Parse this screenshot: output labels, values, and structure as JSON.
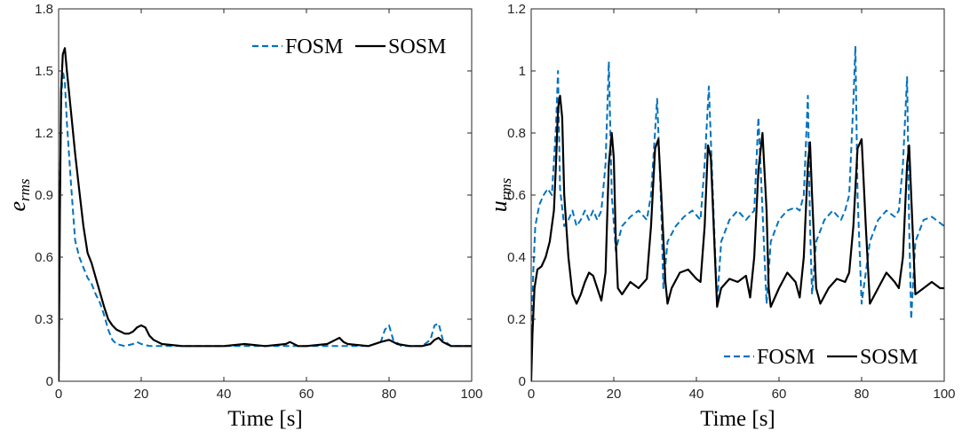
{
  "colors": {
    "fosm": "#0072BD",
    "sosm": "#000000",
    "axis": "#262626",
    "background": "#ffffff"
  },
  "chart_data": [
    {
      "type": "line",
      "xlabel": "Time [s]",
      "ylabel": {
        "main": "e",
        "sub": "rms"
      },
      "xlim": [
        0,
        100
      ],
      "ylim": [
        0,
        1.8
      ],
      "xticks": [
        "0",
        "20",
        "40",
        "60",
        "80",
        "100"
      ],
      "yticks": [
        "0",
        "0.3",
        "0.6",
        "0.9",
        "1.2",
        "1.5",
        "1.8"
      ],
      "grid": false,
      "legend": {
        "position": "top-right",
        "entries": [
          "FOSM",
          "SOSM"
        ]
      },
      "series": [
        {
          "name": "FOSM",
          "style": "dashed",
          "x": [
            0,
            0.3,
            0.6,
            1,
            1.5,
            2,
            3,
            4,
            5,
            6,
            7,
            8,
            9,
            10,
            11,
            12,
            13,
            14,
            16,
            18,
            19,
            20,
            22,
            25,
            30,
            40,
            50,
            55,
            60,
            65,
            70,
            75,
            78,
            79,
            80,
            81,
            83,
            85,
            88,
            90,
            91,
            92,
            93,
            95,
            100
          ],
          "y": [
            0,
            0.9,
            1.35,
            1.5,
            1.45,
            1.25,
            0.95,
            0.68,
            0.6,
            0.55,
            0.5,
            0.47,
            0.42,
            0.38,
            0.32,
            0.25,
            0.2,
            0.18,
            0.17,
            0.18,
            0.19,
            0.18,
            0.17,
            0.17,
            0.17,
            0.17,
            0.17,
            0.17,
            0.17,
            0.17,
            0.17,
            0.17,
            0.19,
            0.25,
            0.27,
            0.2,
            0.17,
            0.17,
            0.17,
            0.2,
            0.27,
            0.28,
            0.2,
            0.17,
            0.17
          ]
        },
        {
          "name": "SOSM",
          "style": "solid",
          "x": [
            0,
            0.3,
            0.6,
            1,
            1.5,
            2,
            3,
            4,
            5,
            6,
            7,
            8,
            9,
            10,
            11,
            12,
            13,
            14,
            15,
            16,
            17,
            18,
            19,
            20,
            21,
            22,
            23,
            25,
            30,
            35,
            40,
            45,
            50,
            55,
            56,
            58,
            60,
            65,
            67,
            68,
            69,
            70,
            75,
            78,
            80,
            82,
            85,
            88,
            90,
            91,
            92,
            93,
            94,
            95,
            100
          ],
          "y": [
            0,
            0.8,
            1.4,
            1.58,
            1.61,
            1.5,
            1.3,
            1.1,
            0.92,
            0.75,
            0.62,
            0.57,
            0.5,
            0.43,
            0.36,
            0.3,
            0.27,
            0.25,
            0.24,
            0.23,
            0.23,
            0.24,
            0.26,
            0.27,
            0.26,
            0.22,
            0.2,
            0.18,
            0.17,
            0.17,
            0.17,
            0.18,
            0.17,
            0.18,
            0.19,
            0.17,
            0.17,
            0.18,
            0.2,
            0.21,
            0.19,
            0.18,
            0.17,
            0.19,
            0.2,
            0.18,
            0.17,
            0.17,
            0.18,
            0.2,
            0.21,
            0.19,
            0.18,
            0.17,
            0.17
          ]
        }
      ]
    },
    {
      "type": "line",
      "xlabel": "Time [s]",
      "ylabel": {
        "main": "u",
        "sub": "rms"
      },
      "xlim": [
        0,
        100
      ],
      "ylim": [
        0,
        1.2
      ],
      "xticks": [
        "0",
        "20",
        "40",
        "60",
        "80",
        "100"
      ],
      "yticks": [
        "0",
        "0.2",
        "0.4",
        "0.6",
        "0.8",
        "1",
        "1.2"
      ],
      "grid": false,
      "legend": {
        "position": "bottom-right",
        "entries": [
          "FOSM",
          "SOSM"
        ]
      },
      "series": [
        {
          "name": "FOSM",
          "style": "dashed",
          "x": [
            0,
            0.5,
            1,
            2,
            3,
            4,
            5,
            6,
            6.5,
            7,
            8,
            9,
            10,
            11,
            12,
            13,
            14,
            15,
            16,
            17,
            18,
            18.8,
            19.5,
            20.5,
            21,
            22,
            24,
            26,
            28,
            29,
            30.5,
            31.5,
            32,
            33,
            35,
            37,
            39,
            41,
            42,
            43,
            44,
            45,
            46,
            48,
            50,
            52,
            54,
            55,
            56,
            57,
            58,
            60,
            62,
            64,
            65,
            66,
            67,
            67.5,
            68,
            69,
            71,
            73,
            75,
            76,
            77,
            78,
            78.5,
            79,
            80,
            82,
            84,
            86,
            88,
            89,
            90,
            91,
            91.5,
            92,
            93,
            95,
            97,
            99,
            100
          ],
          "y": [
            0.1,
            0.35,
            0.5,
            0.57,
            0.6,
            0.62,
            0.6,
            0.82,
            1.0,
            0.62,
            0.5,
            0.52,
            0.55,
            0.5,
            0.52,
            0.55,
            0.52,
            0.55,
            0.52,
            0.55,
            0.7,
            1.03,
            0.6,
            0.42,
            0.45,
            0.5,
            0.53,
            0.55,
            0.52,
            0.6,
            0.91,
            0.55,
            0.3,
            0.45,
            0.5,
            0.53,
            0.55,
            0.52,
            0.7,
            0.95,
            0.6,
            0.25,
            0.45,
            0.52,
            0.55,
            0.52,
            0.55,
            0.85,
            0.55,
            0.25,
            0.45,
            0.52,
            0.55,
            0.56,
            0.55,
            0.6,
            0.92,
            0.5,
            0.28,
            0.45,
            0.52,
            0.55,
            0.52,
            0.55,
            0.6,
            0.9,
            1.08,
            0.6,
            0.25,
            0.45,
            0.52,
            0.55,
            0.53,
            0.55,
            0.7,
            0.98,
            0.5,
            0.2,
            0.45,
            0.52,
            0.53,
            0.51,
            0.5
          ]
        },
        {
          "name": "SOSM",
          "style": "solid",
          "x": [
            0,
            0.3,
            0.8,
            1.5,
            2.5,
            3.5,
            4.5,
            5.5,
            6,
            6.5,
            7,
            7.5,
            8,
            9,
            10,
            11,
            12,
            13,
            14,
            15,
            16,
            17,
            18,
            18.8,
            19.5,
            20,
            20.5,
            21,
            22,
            24,
            26,
            28,
            29,
            30,
            30.8,
            31.5,
            32.5,
            33,
            34,
            36,
            38,
            40,
            41,
            42,
            42.8,
            43.5,
            44.5,
            45,
            46,
            48,
            50,
            52,
            53,
            54,
            55,
            56,
            57,
            57.5,
            58,
            60,
            62,
            64,
            65,
            66,
            67,
            67.5,
            68,
            69,
            70,
            72,
            74,
            76,
            77,
            78,
            79,
            80,
            81,
            82,
            84,
            86,
            88,
            89,
            90,
            91,
            91.5,
            92,
            93,
            95,
            97,
            99,
            100
          ],
          "y": [
            0,
            0.15,
            0.3,
            0.36,
            0.37,
            0.4,
            0.45,
            0.55,
            0.7,
            0.88,
            0.92,
            0.85,
            0.6,
            0.4,
            0.28,
            0.25,
            0.28,
            0.32,
            0.35,
            0.34,
            0.3,
            0.26,
            0.35,
            0.7,
            0.8,
            0.72,
            0.45,
            0.3,
            0.28,
            0.32,
            0.3,
            0.33,
            0.5,
            0.75,
            0.78,
            0.6,
            0.32,
            0.25,
            0.3,
            0.35,
            0.36,
            0.33,
            0.32,
            0.5,
            0.76,
            0.72,
            0.4,
            0.24,
            0.3,
            0.33,
            0.32,
            0.34,
            0.27,
            0.4,
            0.68,
            0.8,
            0.55,
            0.3,
            0.24,
            0.3,
            0.35,
            0.32,
            0.27,
            0.4,
            0.7,
            0.77,
            0.6,
            0.3,
            0.25,
            0.3,
            0.33,
            0.32,
            0.35,
            0.5,
            0.75,
            0.78,
            0.5,
            0.25,
            0.3,
            0.35,
            0.32,
            0.3,
            0.4,
            0.7,
            0.76,
            0.6,
            0.28,
            0.3,
            0.32,
            0.3,
            0.3
          ]
        }
      ]
    }
  ]
}
